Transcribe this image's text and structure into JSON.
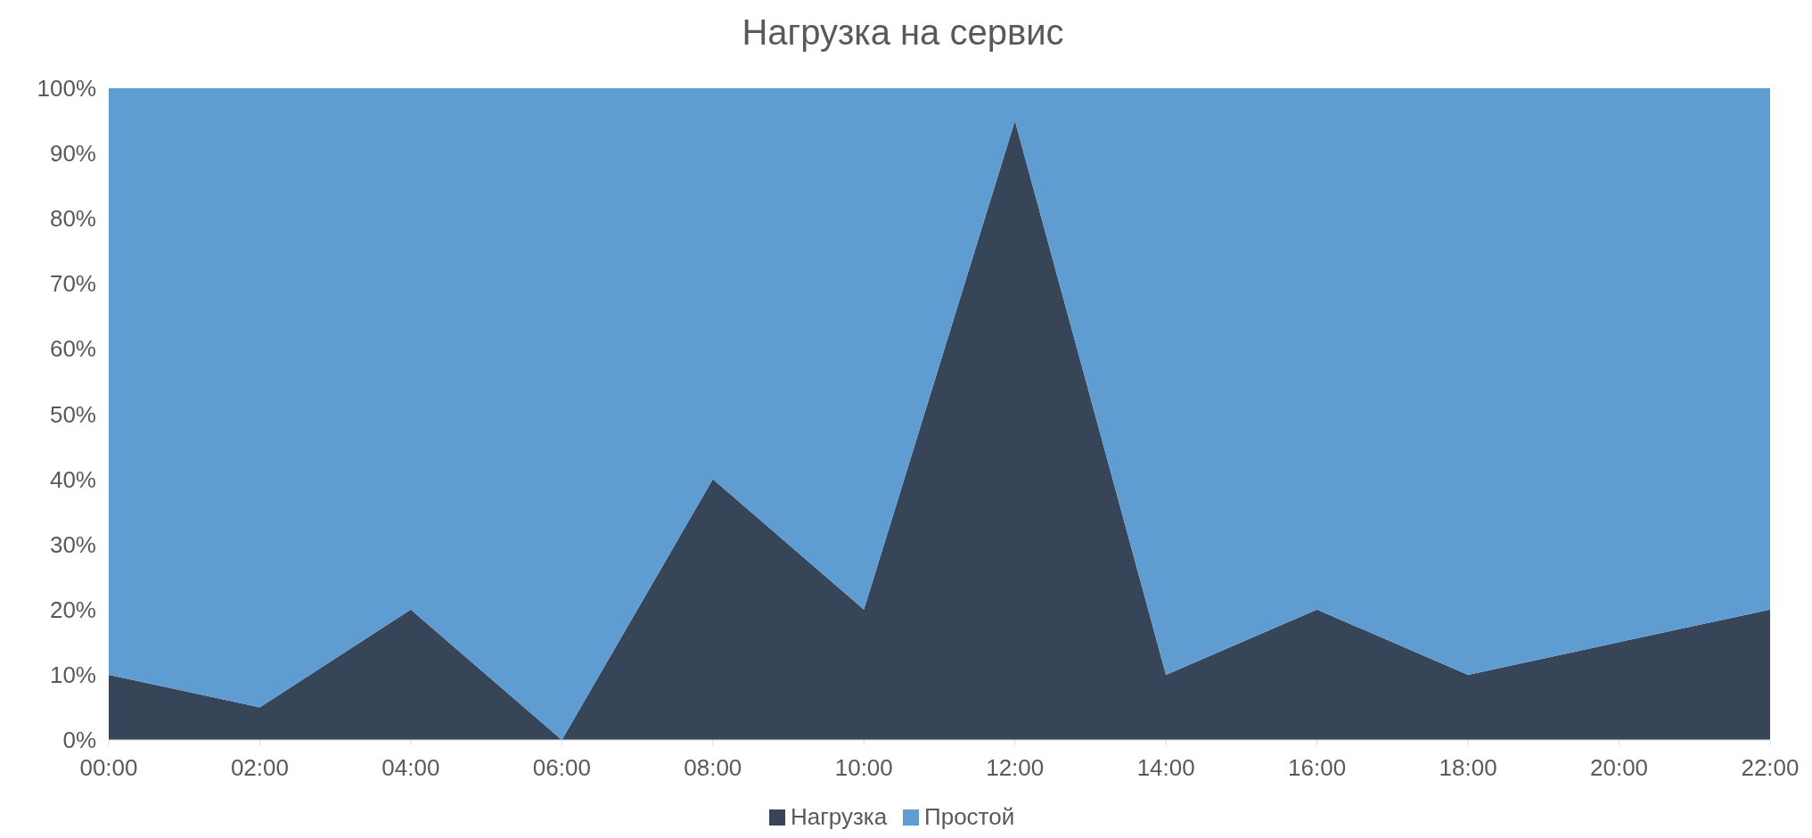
{
  "chart_data": {
    "type": "area",
    "title": "Нагрузка на сервис",
    "stacked": true,
    "categories": [
      "00:00",
      "02:00",
      "04:00",
      "06:00",
      "08:00",
      "10:00",
      "12:00",
      "14:00",
      "16:00",
      "18:00",
      "20:00",
      "22:00"
    ],
    "series": [
      {
        "name": "Нагрузка",
        "color": "#374559",
        "values": [
          10,
          5,
          20,
          0,
          40,
          20,
          95,
          10,
          20,
          10,
          15,
          20
        ]
      },
      {
        "name": "Простой",
        "color": "#5f9cd1",
        "values": [
          90,
          95,
          80,
          100,
          60,
          80,
          5,
          90,
          80,
          90,
          85,
          80
        ]
      }
    ],
    "ylim": [
      0,
      100
    ],
    "yticks": [
      {
        "value": 0,
        "label": "0%"
      },
      {
        "value": 10,
        "label": "10%"
      },
      {
        "value": 20,
        "label": "20%"
      },
      {
        "value": 30,
        "label": "30%"
      },
      {
        "value": 40,
        "label": "40%"
      },
      {
        "value": 50,
        "label": "50%"
      },
      {
        "value": 60,
        "label": "60%"
      },
      {
        "value": 70,
        "label": "70%"
      },
      {
        "value": 80,
        "label": "80%"
      },
      {
        "value": 90,
        "label": "90%"
      },
      {
        "value": 100,
        "label": "100%"
      }
    ],
    "legend": "bottom"
  }
}
